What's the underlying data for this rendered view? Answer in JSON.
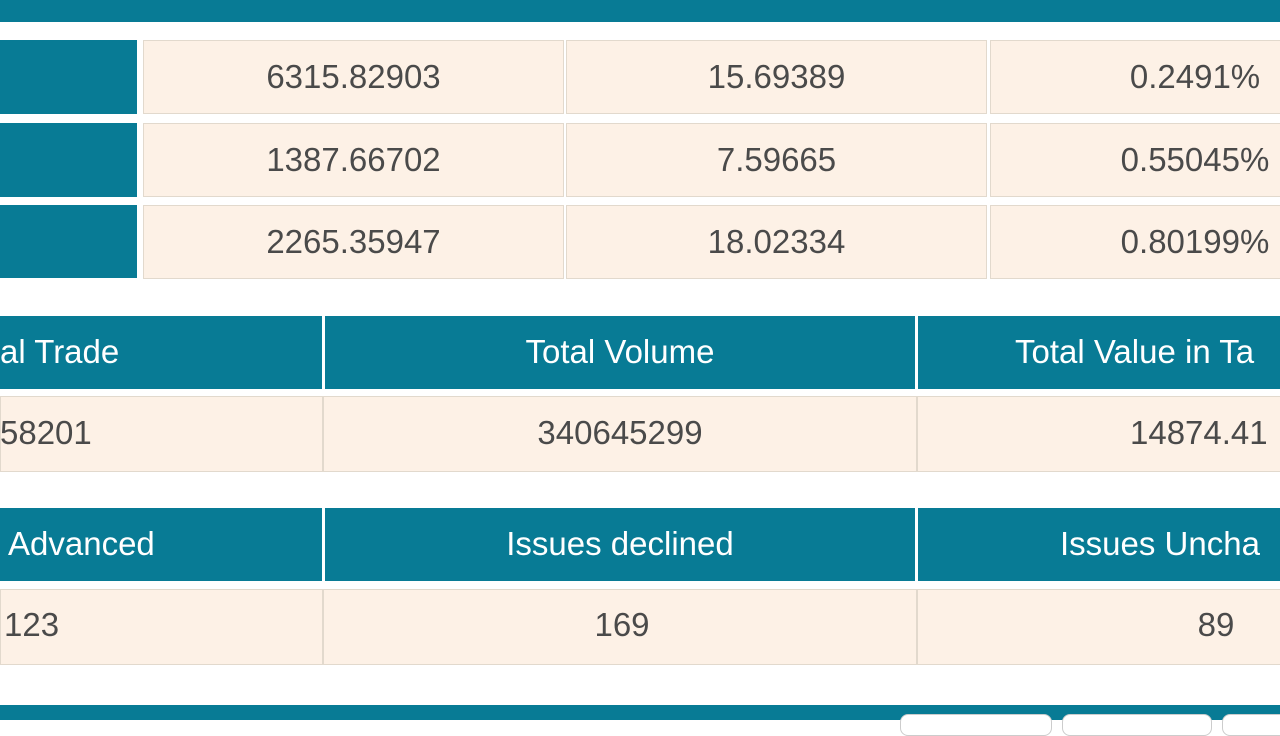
{
  "top_table": {
    "rows": [
      [
        "6315.82903",
        "15.69389",
        "0.2491%"
      ],
      [
        "1387.66702",
        "7.59665",
        "0.55045%"
      ],
      [
        "2265.35947",
        "18.02334",
        "0.80199%"
      ]
    ]
  },
  "summary_table": {
    "header": [
      "al Trade",
      "Total Volume",
      "Total Value in Ta"
    ],
    "row": [
      "58201",
      "340645299",
      "14874.41"
    ]
  },
  "issues_table": {
    "header": [
      "Advanced",
      "Issues declined",
      "Issues Uncha"
    ],
    "row": [
      "123",
      "169",
      "89"
    ]
  }
}
